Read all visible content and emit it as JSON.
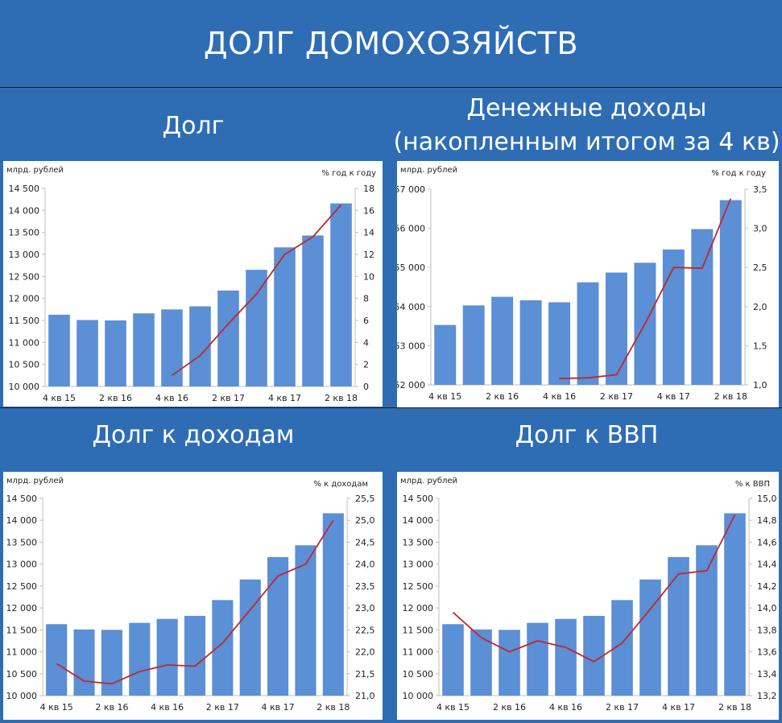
{
  "title": "ДОЛГ ДОМОХОЗЯЙСТВ",
  "charts": [
    {
      "heading": [
        "Долг"
      ],
      "unit_left": "млрд. рублей",
      "unit_right": "%  год к году",
      "left_ticks": [
        "10 000",
        "10 500",
        "11 000",
        "11 500",
        "12 000",
        "12 500",
        "13 000",
        "13 500",
        "14 000",
        "14 500"
      ],
      "right_ticks": [
        "0",
        "2",
        "4",
        "6",
        "8",
        "10",
        "12",
        "14",
        "16",
        "18"
      ],
      "x_ticks": [
        "4 кв 15",
        "2 кв 16",
        "4 кв 16",
        "2 кв 17",
        "4 кв 17",
        "2 кв 18"
      ]
    },
    {
      "heading": [
        "Денежные доходы",
        "(накопленным итогом за 4 кв)"
      ],
      "unit_left": "млрд. рублей",
      "unit_right": "%  год к году",
      "left_ticks": [
        "52 000",
        "53 000",
        "54 000",
        "55 000",
        "56 000",
        "57 000"
      ],
      "right_ticks": [
        "1,0",
        "1,5",
        "2,0",
        "2,5",
        "3,0",
        "3,5"
      ],
      "x_ticks": [
        "4 кв 15",
        "2 кв 16",
        "4 кв 16",
        "2 кв 17",
        "4 кв 17",
        "2 кв 18"
      ]
    },
    {
      "heading": [
        "Долг к доходам"
      ],
      "unit_left": "млрд. рублей",
      "unit_right": "%  к доходам",
      "left_ticks": [
        "10 000",
        "10 500",
        "11 000",
        "11 500",
        "12 000",
        "12 500",
        "13 000",
        "13 500",
        "14 000",
        "14 500"
      ],
      "right_ticks": [
        "21,0",
        "21,5",
        "22,0",
        "22,5",
        "23,0",
        "23,5",
        "24,0",
        "24,5",
        "25,0",
        "25,5"
      ],
      "x_ticks": [
        "4 кв 15",
        "2 кв 16",
        "4 кв 16",
        "2 кв 17",
        "4 кв 17",
        "2 кв 18"
      ]
    },
    {
      "heading": [
        "Долг к ВВП"
      ],
      "unit_left": "млрд. рублей",
      "unit_right": "%  к ВВП",
      "left_ticks": [
        "10 000",
        "10 500",
        "11 000",
        "11 500",
        "12 000",
        "12 500",
        "13 000",
        "13 500",
        "14 000",
        "14 500"
      ],
      "right_ticks": [
        "13,2",
        "13,4",
        "13,6",
        "13,8",
        "14,0",
        "14,2",
        "14,4",
        "14,6",
        "14,8",
        "15,0"
      ],
      "x_ticks": [
        "4 кв 15",
        "2 кв 16",
        "4 кв 16",
        "2 кв 17",
        "4 кв 17",
        "2 кв 18"
      ]
    }
  ],
  "chart_data": [
    {
      "type": "bar+line",
      "categories": [
        "4 кв 15",
        "1 кв 16",
        "2 кв 16",
        "3 кв 16",
        "4 кв 16",
        "1 кв 17",
        "2 кв 17",
        "3 кв 17",
        "4 кв 17",
        "1 кв 18",
        "2 кв 18"
      ],
      "ylabel": "млрд. рублей",
      "y2label": "%  год к году",
      "ylim": [
        10000,
        14500
      ],
      "y2lim": [
        0,
        18
      ],
      "bar_series": {
        "color": "#5b8fd6",
        "values": [
          11630,
          11510,
          11500,
          11660,
          11750,
          11820,
          12180,
          12650,
          13160,
          13430,
          14160
        ]
      },
      "line_series": {
        "color": "#c0282c",
        "values": [
          null,
          null,
          null,
          null,
          1.0,
          2.8,
          5.7,
          8.4,
          12.0,
          13.6,
          16.5
        ]
      }
    },
    {
      "type": "bar+line",
      "categories": [
        "4 кв 15",
        "1 кв 16",
        "2 кв 16",
        "3 кв 16",
        "4 кв 16",
        "1 кв 17",
        "2 кв 17",
        "3 кв 17",
        "4 кв 17",
        "1 кв 18",
        "2 кв 18"
      ],
      "ylabel": "млрд. рублей",
      "y2label": "%  год к году",
      "ylim": [
        52000,
        57000
      ],
      "y2lim": [
        1.0,
        3.5
      ],
      "bar_series": {
        "color": "#5b8fd6",
        "values": [
          53530,
          54030,
          54250,
          54160,
          54110,
          54620,
          54870,
          55120,
          55460,
          55980,
          56720
        ]
      },
      "line_series": {
        "color": "#c0282c",
        "values": [
          null,
          null,
          null,
          null,
          1.08,
          1.09,
          1.13,
          1.78,
          2.5,
          2.49,
          3.38
        ]
      }
    },
    {
      "type": "bar+line",
      "categories": [
        "4 кв 15",
        "1 кв 16",
        "2 кв 16",
        "3 кв 16",
        "4 кв 16",
        "1 кв 17",
        "2 кв 17",
        "3 кв 17",
        "4 кв 17",
        "1 кв 18",
        "2 кв 18"
      ],
      "ylabel": "млрд. рублей",
      "y2label": "%  к доходам",
      "ylim": [
        10000,
        14500
      ],
      "y2lim": [
        21.0,
        25.5
      ],
      "bar_series": {
        "color": "#5b8fd6",
        "values": [
          11630,
          11510,
          11500,
          11660,
          11750,
          11820,
          12180,
          12650,
          13160,
          13430,
          14160
        ]
      },
      "line_series": {
        "color": "#c0282c",
        "values": [
          21.73,
          21.33,
          21.27,
          21.55,
          21.7,
          21.67,
          22.2,
          22.96,
          23.73,
          24.0,
          25.0
        ]
      }
    },
    {
      "type": "bar+line",
      "categories": [
        "4 кв 15",
        "1 кв 16",
        "2 кв 16",
        "3 кв 16",
        "4 кв 16",
        "1 кв 17",
        "2 кв 17",
        "3 кв 17",
        "4 кв 17",
        "1 кв 18",
        "2 кв 18"
      ],
      "ylabel": "млрд. рублей",
      "y2label": "%  к ВВП",
      "ylim": [
        10000,
        14500
      ],
      "y2lim": [
        13.2,
        15.0
      ],
      "bar_series": {
        "color": "#5b8fd6",
        "values": [
          11630,
          11510,
          11500,
          11660,
          11750,
          11820,
          12180,
          12650,
          13160,
          13430,
          14160
        ]
      },
      "line_series": {
        "color": "#c0282c",
        "values": [
          13.96,
          13.73,
          13.6,
          13.7,
          13.64,
          13.51,
          13.68,
          13.99,
          14.31,
          14.34,
          14.85
        ]
      }
    }
  ]
}
